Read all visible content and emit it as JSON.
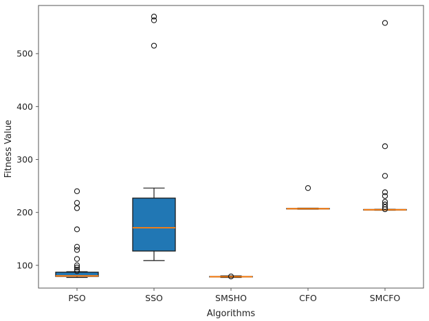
{
  "chart_data": {
    "type": "boxplot",
    "title": "",
    "xlabel": "Algorithms",
    "ylabel": "Fitness Value",
    "categories": [
      "PSO",
      "SSO",
      "SMSHO",
      "CFO",
      "SMCFO"
    ],
    "yticks": [
      100,
      200,
      300,
      400,
      500
    ],
    "ylim": [
      57,
      591
    ],
    "grid": false,
    "legend": "none",
    "colors": {
      "box_fill": "#2177b4",
      "box_edge": "#1a1a1a",
      "median": "#ff7f0e",
      "whisker": "#1a1a1a",
      "spine": "#555555",
      "text": "#1f1f1f",
      "background": "#ffffff"
    },
    "series": [
      {
        "name": "PSO",
        "whisker_low": 77,
        "q1": 79,
        "median": 80,
        "q3": 87,
        "whisker_high": 88,
        "fliers": [
          240,
          218,
          208,
          168,
          135,
          129,
          112,
          100,
          96,
          92,
          89
        ]
      },
      {
        "name": "SSO",
        "whisker_low": 109,
        "q1": 127,
        "median": 171,
        "q3": 227,
        "whisker_high": 246,
        "fliers": [
          515,
          563,
          570
        ]
      },
      {
        "name": "SMSHO",
        "whisker_low": 77,
        "q1": 78,
        "median": 78.5,
        "q3": 79,
        "whisker_high": 80,
        "fliers": [
          79
        ]
      },
      {
        "name": "CFO",
        "whisker_low": 206,
        "q1": 206.5,
        "median": 207,
        "q3": 207.5,
        "whisker_high": 208,
        "fliers": [
          246
        ]
      },
      {
        "name": "SMCFO",
        "whisker_low": 204,
        "q1": 204.5,
        "median": 205,
        "q3": 205.5,
        "whisker_high": 206,
        "fliers": [
          558,
          325,
          269,
          238,
          231,
          220,
          215,
          210,
          206
        ]
      }
    ]
  }
}
